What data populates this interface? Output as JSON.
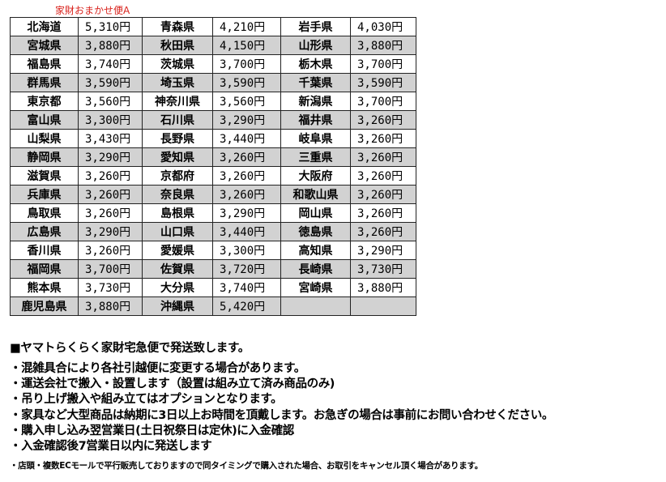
{
  "caption": "家財おまかせ便A",
  "rows": [
    [
      [
        "北海道",
        "5,310円"
      ],
      [
        "青森県",
        "4,210円"
      ],
      [
        "岩手県",
        "4,030円"
      ]
    ],
    [
      [
        "宮城県",
        "3,880円"
      ],
      [
        "秋田県",
        "4,150円"
      ],
      [
        "山形県",
        "3,880円"
      ]
    ],
    [
      [
        "福島県",
        "3,740円"
      ],
      [
        "茨城県",
        "3,700円"
      ],
      [
        "栃木県",
        "3,700円"
      ]
    ],
    [
      [
        "群馬県",
        "3,590円"
      ],
      [
        "埼玉県",
        "3,590円"
      ],
      [
        "千葉県",
        "3,590円"
      ]
    ],
    [
      [
        "東京都",
        "3,560円"
      ],
      [
        "神奈川県",
        "3,560円"
      ],
      [
        "新潟県",
        "3,700円"
      ]
    ],
    [
      [
        "富山県",
        "3,300円"
      ],
      [
        "石川県",
        "3,290円"
      ],
      [
        "福井県",
        "3,260円"
      ]
    ],
    [
      [
        "山梨県",
        "3,430円"
      ],
      [
        "長野県",
        "3,440円"
      ],
      [
        "岐阜県",
        "3,260円"
      ]
    ],
    [
      [
        "静岡県",
        "3,290円"
      ],
      [
        "愛知県",
        "3,260円"
      ],
      [
        "三重県",
        "3,260円"
      ]
    ],
    [
      [
        "滋賀県",
        "3,260円"
      ],
      [
        "京都府",
        "3,260円"
      ],
      [
        "大阪府",
        "3,260円"
      ]
    ],
    [
      [
        "兵庫県",
        "3,260円"
      ],
      [
        "奈良県",
        "3,260円"
      ],
      [
        "和歌山県",
        "3,260円"
      ]
    ],
    [
      [
        "鳥取県",
        "3,260円"
      ],
      [
        "島根県",
        "3,290円"
      ],
      [
        "岡山県",
        "3,260円"
      ]
    ],
    [
      [
        "広島県",
        "3,290円"
      ],
      [
        "山口県",
        "3,440円"
      ],
      [
        "徳島県",
        "3,260円"
      ]
    ],
    [
      [
        "香川県",
        "3,260円"
      ],
      [
        "愛媛県",
        "3,300円"
      ],
      [
        "高知県",
        "3,290円"
      ]
    ],
    [
      [
        "福岡県",
        "3,700円"
      ],
      [
        "佐賀県",
        "3,720円"
      ],
      [
        "長崎県",
        "3,730円"
      ]
    ],
    [
      [
        "熊本県",
        "3,730円"
      ],
      [
        "大分県",
        "3,740円"
      ],
      [
        "宮崎県",
        "3,880円"
      ]
    ],
    [
      [
        "鹿児島県",
        "3,880円"
      ],
      [
        "沖縄県",
        "5,420円"
      ],
      [
        "",
        ""
      ]
    ]
  ],
  "notes": {
    "heading": "■ヤマトらくらく家財宅急便で発送致します。",
    "lines": [
      "・混雑具合により各社引越便に変更する場合があります。",
      "・運送会社で搬入・設置します（設置は組み立て済み商品のみ)",
      "・吊り上げ搬入や組み立てはオプションとなります。",
      "・家具など大型商品は納期に3日以上お時間を頂戴します。お急ぎの場合は事前にお問い合わせください。",
      "・購入申し込み翌営業日(土日祝祭日は定休)に入金確認",
      "・入金確認後7営業日以内に発送します"
    ],
    "small": "・店頭・複数ECモールで平行販売しておりますので同タイミングで購入された場合、お取引をキャンセル頂く場合があります。"
  }
}
